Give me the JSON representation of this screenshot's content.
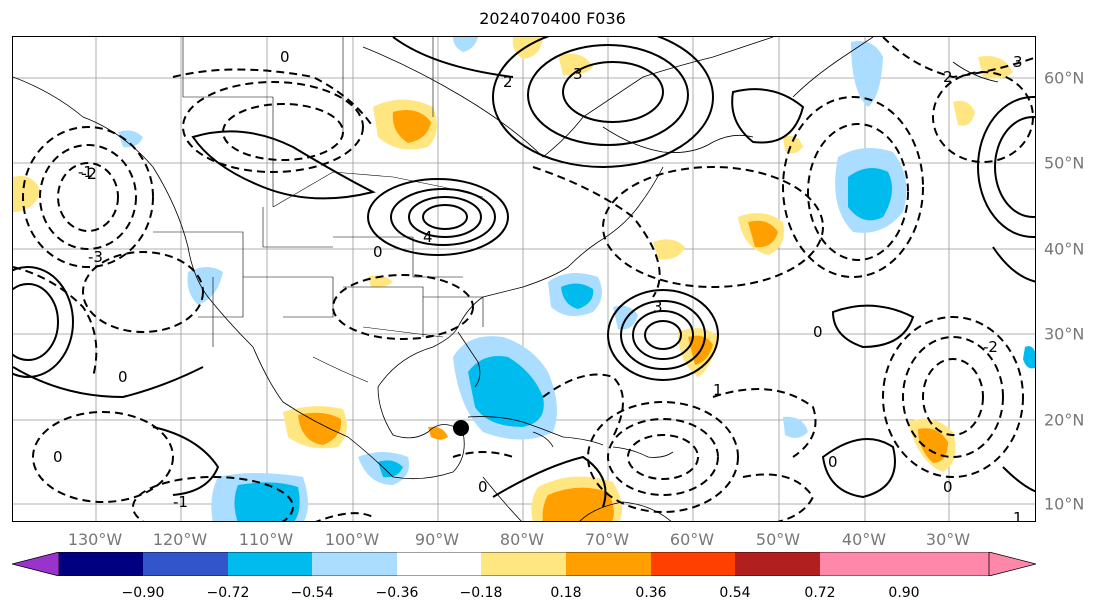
{
  "title": "2024070400 F036",
  "lon_labels": [
    "130°W",
    "120°W",
    "110°W",
    "100°W",
    "90°W",
    "80°W",
    "70°W",
    "60°W",
    "50°W",
    "40°W",
    "30°W"
  ],
  "lat_labels": [
    "60°N",
    "50°N",
    "40°N",
    "30°N",
    "20°N",
    "10°N"
  ],
  "contour_labels": [
    "0",
    "-1",
    "-2",
    "-3",
    "-4",
    "1",
    "2",
    "3",
    "4"
  ],
  "colorbar": {
    "ticks": [
      "−0.90",
      "−0.72",
      "−0.54",
      "−0.36",
      "−0.18",
      "0.18",
      "0.36",
      "0.54",
      "0.72",
      "0.90"
    ],
    "colors": [
      "#9933cc",
      "#000080",
      "#3355cc",
      "#00bbee",
      "#aaddff",
      "#ffffff",
      "#ffe680",
      "#ffa000",
      "#ff4000",
      "#b21f1f",
      "#ff88aa"
    ]
  },
  "marker": "storm-position"
}
